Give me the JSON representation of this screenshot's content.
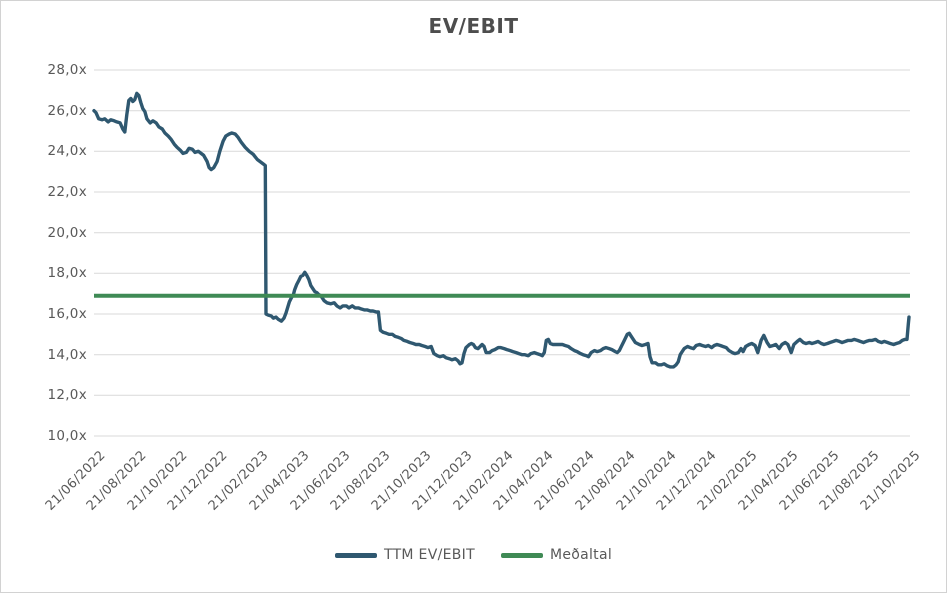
{
  "chart_data": {
    "type": "line",
    "title": "EV/EBIT",
    "xlabel": "",
    "ylabel": "",
    "ylim": [
      10,
      28
    ],
    "grid": "horizontal",
    "grid_color": "#d9d9d9",
    "legend_position": "bottom",
    "x_unit": "days since first observation (21/06/2022)",
    "x_max_days": 1218,
    "y_axis_tick_labels": [
      "28,0x",
      "26,0x",
      "24,0x",
      "22,0x",
      "20,0x",
      "18,0x",
      "16,0x",
      "14,0x",
      "12,0x",
      "10,0x"
    ],
    "y_axis_tick_values": [
      28,
      26,
      24,
      22,
      20,
      18,
      16,
      14,
      12,
      10
    ],
    "x_axis_tick_labels": [
      "21/06/2022",
      "21/08/2022",
      "21/10/2022",
      "21/12/2022",
      "21/02/2023",
      "21/04/2023",
      "21/06/2023",
      "21/08/2023",
      "21/10/2023",
      "21/12/2023",
      "21/02/2024",
      "21/04/2024",
      "21/06/2024",
      "21/08/2024",
      "21/10/2024",
      "21/12/2024",
      "21/02/2025",
      "21/04/2025",
      "21/06/2025",
      "21/08/2025",
      "21/10/2025"
    ],
    "series": [
      {
        "name": "TTM EV/EBIT",
        "kind": "line",
        "color": "#2F5870",
        "points": [
          [
            0,
            26.0
          ],
          [
            3,
            25.9
          ],
          [
            7,
            25.6
          ],
          [
            12,
            25.55
          ],
          [
            16,
            25.6
          ],
          [
            21,
            25.45
          ],
          [
            25,
            25.55
          ],
          [
            30,
            25.5
          ],
          [
            34,
            25.45
          ],
          [
            39,
            25.4
          ],
          [
            43,
            25.1
          ],
          [
            46,
            24.95
          ],
          [
            49,
            25.8
          ],
          [
            52,
            26.5
          ],
          [
            55,
            26.6
          ],
          [
            58,
            26.45
          ],
          [
            61,
            26.55
          ],
          [
            64,
            26.85
          ],
          [
            67,
            26.75
          ],
          [
            70,
            26.4
          ],
          [
            73,
            26.1
          ],
          [
            76,
            25.95
          ],
          [
            79,
            25.6
          ],
          [
            84,
            25.4
          ],
          [
            88,
            25.5
          ],
          [
            93,
            25.4
          ],
          [
            97,
            25.2
          ],
          [
            102,
            25.1
          ],
          [
            106,
            24.9
          ],
          [
            111,
            24.75
          ],
          [
            115,
            24.6
          ],
          [
            120,
            24.35
          ],
          [
            124,
            24.2
          ],
          [
            129,
            24.05
          ],
          [
            133,
            23.9
          ],
          [
            138,
            23.95
          ],
          [
            142,
            24.15
          ],
          [
            147,
            24.1
          ],
          [
            151,
            23.95
          ],
          [
            156,
            24.0
          ],
          [
            160,
            23.9
          ],
          [
            164,
            23.8
          ],
          [
            169,
            23.5
          ],
          [
            172,
            23.2
          ],
          [
            175,
            23.1
          ],
          [
            179,
            23.2
          ],
          [
            184,
            23.5
          ],
          [
            188,
            24.0
          ],
          [
            193,
            24.5
          ],
          [
            197,
            24.75
          ],
          [
            202,
            24.85
          ],
          [
            206,
            24.9
          ],
          [
            211,
            24.85
          ],
          [
            215,
            24.7
          ],
          [
            220,
            24.45
          ],
          [
            226,
            24.2
          ],
          [
            232,
            24.0
          ],
          [
            238,
            23.85
          ],
          [
            244,
            23.6
          ],
          [
            250,
            23.45
          ],
          [
            254,
            23.35
          ],
          [
            256,
            23.3
          ],
          [
            257,
            16.0
          ],
          [
            260,
            15.95
          ],
          [
            265,
            15.9
          ],
          [
            268,
            15.8
          ],
          [
            272,
            15.85
          ],
          [
            275,
            15.75
          ],
          [
            280,
            15.65
          ],
          [
            284,
            15.8
          ],
          [
            287,
            16.05
          ],
          [
            292,
            16.6
          ],
          [
            295,
            16.8
          ],
          [
            298,
            16.95
          ],
          [
            300,
            17.2
          ],
          [
            303,
            17.45
          ],
          [
            306,
            17.65
          ],
          [
            309,
            17.85
          ],
          [
            312,
            17.9
          ],
          [
            315,
            18.05
          ],
          [
            318,
            17.9
          ],
          [
            321,
            17.7
          ],
          [
            324,
            17.4
          ],
          [
            327,
            17.25
          ],
          [
            330,
            17.1
          ],
          [
            333,
            17.05
          ],
          [
            336,
            16.95
          ],
          [
            339,
            16.9
          ],
          [
            344,
            16.65
          ],
          [
            348,
            16.55
          ],
          [
            354,
            16.5
          ],
          [
            359,
            16.55
          ],
          [
            363,
            16.4
          ],
          [
            368,
            16.3
          ],
          [
            372,
            16.4
          ],
          [
            377,
            16.4
          ],
          [
            381,
            16.3
          ],
          [
            386,
            16.4
          ],
          [
            390,
            16.3
          ],
          [
            395,
            16.3
          ],
          [
            399,
            16.25
          ],
          [
            404,
            16.2
          ],
          [
            408,
            16.2
          ],
          [
            413,
            16.15
          ],
          [
            417,
            16.15
          ],
          [
            422,
            16.1
          ],
          [
            425,
            16.1
          ],
          [
            428,
            15.2
          ],
          [
            432,
            15.1
          ],
          [
            437,
            15.05
          ],
          [
            441,
            15.0
          ],
          [
            446,
            15.0
          ],
          [
            450,
            14.9
          ],
          [
            455,
            14.85
          ],
          [
            459,
            14.8
          ],
          [
            463,
            14.7
          ],
          [
            468,
            14.65
          ],
          [
            472,
            14.6
          ],
          [
            477,
            14.55
          ],
          [
            481,
            14.5
          ],
          [
            486,
            14.5
          ],
          [
            490,
            14.45
          ],
          [
            495,
            14.4
          ],
          [
            499,
            14.35
          ],
          [
            504,
            14.4
          ],
          [
            508,
            14.05
          ],
          [
            513,
            13.95
          ],
          [
            517,
            13.9
          ],
          [
            522,
            13.95
          ],
          [
            526,
            13.85
          ],
          [
            531,
            13.8
          ],
          [
            535,
            13.75
          ],
          [
            540,
            13.8
          ],
          [
            544,
            13.7
          ],
          [
            547,
            13.55
          ],
          [
            550,
            13.6
          ],
          [
            553,
            14.05
          ],
          [
            556,
            14.35
          ],
          [
            561,
            14.5
          ],
          [
            564,
            14.55
          ],
          [
            567,
            14.5
          ],
          [
            570,
            14.35
          ],
          [
            574,
            14.3
          ],
          [
            577,
            14.4
          ],
          [
            580,
            14.5
          ],
          [
            583,
            14.4
          ],
          [
            586,
            14.1
          ],
          [
            591,
            14.1
          ],
          [
            595,
            14.2
          ],
          [
            599,
            14.25
          ],
          [
            604,
            14.35
          ],
          [
            608,
            14.35
          ],
          [
            613,
            14.3
          ],
          [
            617,
            14.25
          ],
          [
            622,
            14.2
          ],
          [
            626,
            14.15
          ],
          [
            631,
            14.1
          ],
          [
            635,
            14.05
          ],
          [
            640,
            14.0
          ],
          [
            644,
            14.0
          ],
          [
            649,
            13.95
          ],
          [
            653,
            14.05
          ],
          [
            658,
            14.1
          ],
          [
            662,
            14.05
          ],
          [
            667,
            14.0
          ],
          [
            670,
            13.95
          ],
          [
            673,
            14.1
          ],
          [
            676,
            14.7
          ],
          [
            679,
            14.75
          ],
          [
            682,
            14.55
          ],
          [
            686,
            14.5
          ],
          [
            691,
            14.5
          ],
          [
            695,
            14.5
          ],
          [
            700,
            14.5
          ],
          [
            704,
            14.45
          ],
          [
            709,
            14.4
          ],
          [
            713,
            14.3
          ],
          [
            718,
            14.2
          ],
          [
            722,
            14.15
          ],
          [
            727,
            14.05
          ],
          [
            731,
            14.0
          ],
          [
            736,
            13.95
          ],
          [
            739,
            13.9
          ],
          [
            743,
            14.1
          ],
          [
            748,
            14.2
          ],
          [
            752,
            14.15
          ],
          [
            757,
            14.2
          ],
          [
            761,
            14.3
          ],
          [
            765,
            14.35
          ],
          [
            770,
            14.3
          ],
          [
            774,
            14.25
          ],
          [
            779,
            14.15
          ],
          [
            782,
            14.1
          ],
          [
            785,
            14.2
          ],
          [
            788,
            14.4
          ],
          [
            791,
            14.6
          ],
          [
            794,
            14.8
          ],
          [
            797,
            15.0
          ],
          [
            800,
            15.05
          ],
          [
            803,
            14.9
          ],
          [
            806,
            14.75
          ],
          [
            809,
            14.6
          ],
          [
            812,
            14.55
          ],
          [
            815,
            14.5
          ],
          [
            819,
            14.45
          ],
          [
            824,
            14.5
          ],
          [
            828,
            14.55
          ],
          [
            831,
            13.9
          ],
          [
            834,
            13.6
          ],
          [
            839,
            13.6
          ],
          [
            843,
            13.5
          ],
          [
            848,
            13.5
          ],
          [
            852,
            13.55
          ],
          [
            857,
            13.45
          ],
          [
            861,
            13.4
          ],
          [
            866,
            13.4
          ],
          [
            870,
            13.5
          ],
          [
            873,
            13.65
          ],
          [
            876,
            14.0
          ],
          [
            879,
            14.15
          ],
          [
            882,
            14.3
          ],
          [
            887,
            14.4
          ],
          [
            891,
            14.35
          ],
          [
            896,
            14.3
          ],
          [
            900,
            14.45
          ],
          [
            905,
            14.5
          ],
          [
            909,
            14.45
          ],
          [
            914,
            14.4
          ],
          [
            918,
            14.45
          ],
          [
            923,
            14.35
          ],
          [
            927,
            14.45
          ],
          [
            931,
            14.5
          ],
          [
            936,
            14.45
          ],
          [
            940,
            14.4
          ],
          [
            945,
            14.35
          ],
          [
            949,
            14.2
          ],
          [
            954,
            14.1
          ],
          [
            958,
            14.05
          ],
          [
            963,
            14.1
          ],
          [
            967,
            14.3
          ],
          [
            970,
            14.15
          ],
          [
            974,
            14.4
          ],
          [
            979,
            14.5
          ],
          [
            983,
            14.55
          ],
          [
            988,
            14.45
          ],
          [
            992,
            14.1
          ],
          [
            997,
            14.7
          ],
          [
            1001,
            14.95
          ],
          [
            1006,
            14.6
          ],
          [
            1010,
            14.4
          ],
          [
            1015,
            14.45
          ],
          [
            1019,
            14.5
          ],
          [
            1024,
            14.3
          ],
          [
            1028,
            14.5
          ],
          [
            1033,
            14.6
          ],
          [
            1037,
            14.5
          ],
          [
            1042,
            14.1
          ],
          [
            1046,
            14.5
          ],
          [
            1051,
            14.65
          ],
          [
            1055,
            14.75
          ],
          [
            1060,
            14.6
          ],
          [
            1064,
            14.55
          ],
          [
            1069,
            14.6
          ],
          [
            1073,
            14.55
          ],
          [
            1078,
            14.6
          ],
          [
            1082,
            14.65
          ],
          [
            1087,
            14.55
          ],
          [
            1091,
            14.5
          ],
          [
            1096,
            14.55
          ],
          [
            1100,
            14.6
          ],
          [
            1105,
            14.65
          ],
          [
            1109,
            14.7
          ],
          [
            1114,
            14.65
          ],
          [
            1118,
            14.6
          ],
          [
            1123,
            14.65
          ],
          [
            1127,
            14.7
          ],
          [
            1132,
            14.7
          ],
          [
            1136,
            14.75
          ],
          [
            1141,
            14.7
          ],
          [
            1145,
            14.65
          ],
          [
            1150,
            14.6
          ],
          [
            1154,
            14.65
          ],
          [
            1159,
            14.7
          ],
          [
            1163,
            14.7
          ],
          [
            1168,
            14.75
          ],
          [
            1172,
            14.65
          ],
          [
            1177,
            14.6
          ],
          [
            1181,
            14.65
          ],
          [
            1186,
            14.6
          ],
          [
            1190,
            14.55
          ],
          [
            1195,
            14.5
          ],
          [
            1199,
            14.55
          ],
          [
            1204,
            14.6
          ],
          [
            1208,
            14.7
          ],
          [
            1212,
            14.75
          ],
          [
            1215,
            14.75
          ],
          [
            1217,
            15.5
          ],
          [
            1218,
            15.85
          ]
        ]
      },
      {
        "name": "Meðaltal",
        "kind": "hline",
        "color": "#3F8A55",
        "value": 16.9
      }
    ],
    "legend": [
      {
        "label": "TTM EV/EBIT",
        "color": "#2F5870"
      },
      {
        "label": "Meðaltal",
        "color": "#3F8A55"
      }
    ],
    "text_color": "#595959",
    "title_color": "#4d4d4d"
  }
}
